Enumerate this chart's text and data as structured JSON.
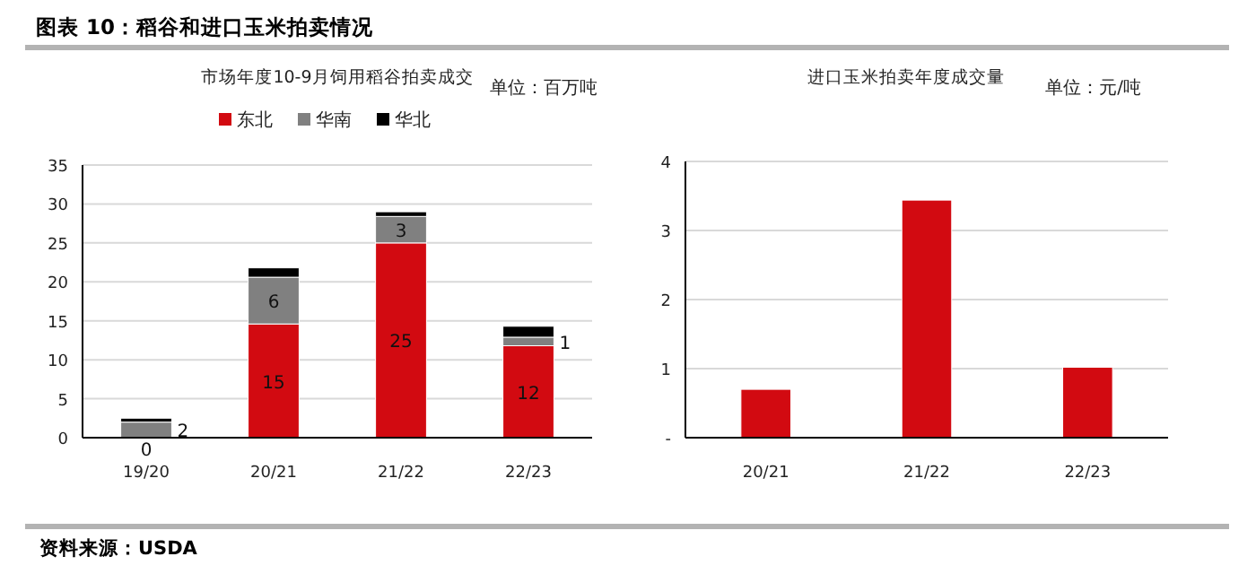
{
  "chart_data": [
    {
      "type": "bar",
      "title": "市场年度10-9月饲用稻谷拍卖成交",
      "annotations": [
        "图表 10：稻谷和进口玉米拍卖情况",
        "单位：百万吨"
      ],
      "categories": [
        "19/20",
        "20/21",
        "21/22",
        "22/23"
      ],
      "stacked": true,
      "ylim": [
        0,
        35
      ],
      "yticks": [
        0,
        5,
        10,
        15,
        20,
        25,
        30,
        35
      ],
      "grid": "y",
      "legend": "top",
      "series": [
        {
          "name": "东北",
          "color": "#d20a11",
          "values": [
            0,
            14.6,
            25,
            11.8
          ],
          "value_labels": [
            "0",
            "15",
            "25",
            "12"
          ]
        },
        {
          "name": "华南",
          "color": "#808080",
          "values": [
            2,
            6,
            3.4,
            1.1
          ],
          "value_labels": [
            "2",
            "6",
            "3",
            "1"
          ]
        },
        {
          "name": "华北",
          "color": "#000000",
          "values": [
            0.5,
            1.2,
            0.6,
            1.4
          ]
        }
      ]
    },
    {
      "type": "bar",
      "title": "进口玉米拍卖年度成交量",
      "annotations": [
        "单位：元/吨",
        "资料来源：USDA"
      ],
      "categories": [
        "20/21",
        "21/22",
        "22/23"
      ],
      "ylim": [
        0,
        4
      ],
      "yticks": [
        {
          "value": 0,
          "label": "-"
        },
        1,
        2,
        3,
        4
      ],
      "grid": "y",
      "series": [
        {
          "color": "#d20a11",
          "values": [
            0.7,
            3.44,
            1.02
          ]
        }
      ]
    }
  ]
}
